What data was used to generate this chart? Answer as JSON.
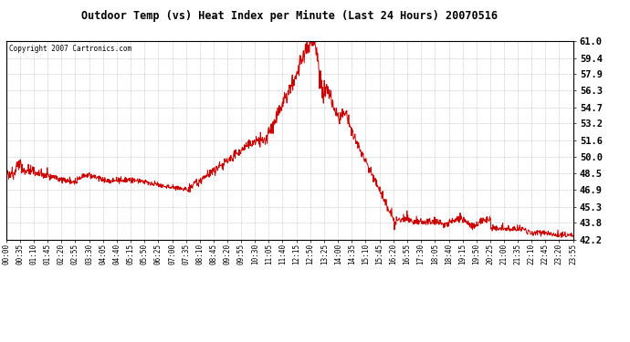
{
  "title": "Outdoor Temp (vs) Heat Index per Minute (Last 24 Hours) 20070516",
  "copyright": "Copyright 2007 Cartronics.com",
  "line_color": "#cc0000",
  "bg_color": "#ffffff",
  "grid_color": "#aaaaaa",
  "ylim": [
    42.2,
    61.0
  ],
  "yticks": [
    42.2,
    43.8,
    45.3,
    46.9,
    48.5,
    50.0,
    51.6,
    53.2,
    54.7,
    56.3,
    57.9,
    59.4,
    61.0
  ],
  "xtick_labels": [
    "00:00",
    "00:35",
    "01:10",
    "01:45",
    "02:20",
    "02:55",
    "03:30",
    "04:05",
    "04:40",
    "05:15",
    "05:50",
    "06:25",
    "07:00",
    "07:35",
    "08:10",
    "08:45",
    "09:20",
    "09:55",
    "10:30",
    "11:05",
    "11:40",
    "12:15",
    "12:50",
    "13:25",
    "14:00",
    "14:35",
    "15:10",
    "15:45",
    "16:20",
    "16:55",
    "17:30",
    "18:05",
    "18:40",
    "19:15",
    "19:50",
    "20:25",
    "21:00",
    "21:35",
    "22:10",
    "22:45",
    "23:20",
    "23:55"
  ],
  "seed": 42
}
